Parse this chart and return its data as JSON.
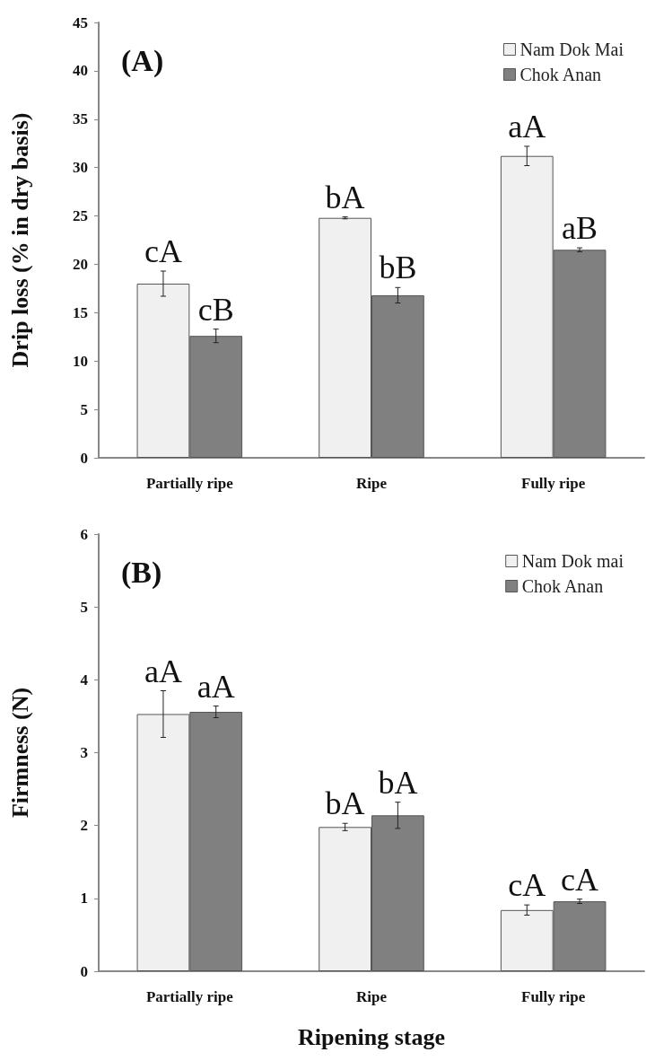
{
  "chart_data": [
    {
      "type": "bar",
      "title": "(A)",
      "ylabel": "Drip loss (% in dry basis)",
      "categories": [
        "Partially ripe",
        "Ripe",
        "Fully ripe"
      ],
      "series": [
        {
          "name": "Nam Dok Mai",
          "color": "#f0f0f0",
          "values": [
            18.0,
            24.8,
            31.2
          ],
          "errors": [
            1.3,
            0.1,
            1.0
          ],
          "value_labels": [
            "cA",
            "bA",
            "aA"
          ]
        },
        {
          "name": "Chok Anan",
          "color": "#808080",
          "values": [
            12.6,
            16.8,
            21.5
          ],
          "errors": [
            0.7,
            0.8,
            0.2
          ],
          "value_labels": [
            "cB",
            "bB",
            "aB"
          ]
        }
      ],
      "ylim": [
        0,
        45
      ],
      "yticks": [
        0,
        5,
        10,
        15,
        20,
        25,
        30,
        35,
        40,
        45
      ],
      "grid": false,
      "legend": "top right"
    },
    {
      "type": "bar",
      "title": "(B)",
      "xlabel": "Ripening stage",
      "ylabel": "Firmness (N)",
      "categories": [
        "Partially ripe",
        "Ripe",
        "Fully ripe"
      ],
      "series": [
        {
          "name": "Nam Dok mai",
          "color": "#f0f0f0",
          "values": [
            3.53,
            1.98,
            0.84
          ],
          "errors": [
            0.32,
            0.05,
            0.07
          ],
          "value_labels": [
            "aA",
            "bA",
            "cA"
          ]
        },
        {
          "name": "Chok Anan",
          "color": "#808080",
          "values": [
            3.56,
            2.14,
            0.96
          ],
          "errors": [
            0.08,
            0.18,
            0.03
          ],
          "value_labels": [
            "aA",
            "bA",
            "cA"
          ]
        }
      ],
      "ylim": [
        0,
        6
      ],
      "yticks": [
        0,
        1,
        2,
        3,
        4,
        5,
        6
      ],
      "grid": false,
      "legend": "top right"
    }
  ]
}
